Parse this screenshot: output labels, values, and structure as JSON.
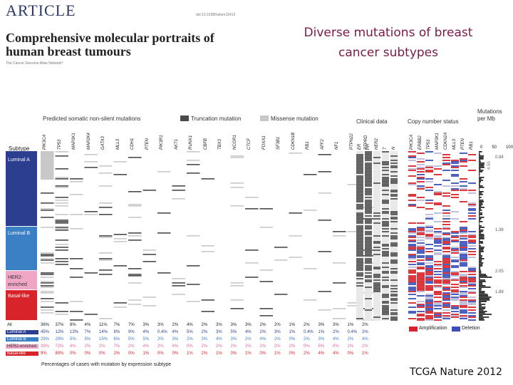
{
  "header": {
    "article_label": "ARTICLE",
    "doi": "doi:10.1038/nature11412",
    "paper_title": "Comprehensive molecular portraits of human breast tumours",
    "authors": "The Cancer Genome Atlas Network*"
  },
  "slide": {
    "title": "Diverse mutations of breast cancer subtypes",
    "credit": "TCGA Nature 2012"
  },
  "figure": {
    "section_mutations": "Predicted somatic non-silent mutations",
    "legend_truncation": "Truncation mutation",
    "legend_missense": "Missense mutation",
    "section_clinical": "Clinical data",
    "section_copy_number": "Copy number status",
    "section_mut_rate": "Mutations per Mb",
    "subtype_header": "Subtype",
    "mut_rate_ticks": [
      "0",
      "50",
      "100"
    ],
    "mut_genes": [
      "PIK3CA",
      "TP53",
      "MAP3K1",
      "MAP2K4",
      "GATA3",
      "MLL3",
      "CDH1",
      "PTEN",
      "PIK3R1",
      "AKT1",
      "RUNX1",
      "CBFB",
      "TBX3",
      "NCOR1",
      "CTCF",
      "FOXA1",
      "SF3B1",
      "CDKN1B",
      "RB1",
      "AFF2",
      "NF1",
      "PTPN22",
      "PTPRD"
    ],
    "clinical_cols": [
      "ER",
      "PR",
      "HER2",
      "T",
      "N"
    ],
    "cn_genes": [
      "PIK3CA",
      "ERBB2",
      "TP53",
      "MAP3K1",
      "CDKN2A",
      "MLL3",
      "PTEN",
      "RB1"
    ],
    "subtypes": [
      {
        "label": "Luminal A",
        "color": "#2b3e8f"
      },
      {
        "label": "Luminal B",
        "color": "#3b7fc4"
      },
      {
        "label": "HER2-enriched",
        "color": "#f0a7c6"
      },
      {
        "label": "Basal-like",
        "color": "#d8232a"
      }
    ],
    "rate_markers": [
      "0.84",
      "1.38",
      "2.05",
      "1.88"
    ],
    "rate_scale_label": "4.55",
    "pct_rows": [
      {
        "label": "All",
        "values": [
          "36%",
          "37%",
          "8%",
          "4%",
          "11%",
          "7%",
          "7%",
          "3%",
          "3%",
          "2%",
          "4%",
          "2%",
          "3%",
          "3%",
          "3%",
          "2%",
          "2%",
          "1%",
          "2%",
          "3%",
          "3%",
          "1%",
          "2%"
        ]
      },
      {
        "label": "Luminal A",
        "values": [
          "45%",
          "12%",
          "13%",
          "7%",
          "14%",
          "8%",
          "9%",
          "4%",
          "0.4%",
          "4%",
          "5%",
          "2%",
          "3%",
          "5%",
          "4%",
          "2%",
          "3%",
          "1%",
          "0.4%",
          "1%",
          "2%",
          "0.4%",
          "2%"
        ]
      },
      {
        "label": "Luminal B",
        "values": [
          "29%",
          "29%",
          "5%",
          "5%",
          "15%",
          "6%",
          "5%",
          "5%",
          "2%",
          "3%",
          "2%",
          "3%",
          "4%",
          "3%",
          "2%",
          "4%",
          "2%",
          "0%",
          "2%",
          "3%",
          "4%",
          "2%",
          "4%"
        ]
      },
      {
        "label": "HER2-enriched",
        "values": [
          "39%",
          "72%",
          "4%",
          "2%",
          "2%",
          "7%",
          "2%",
          "4%",
          "2%",
          "4%",
          "0%",
          "2%",
          "2%",
          "2%",
          "2%",
          "2%",
          "2%",
          "2%",
          "0%",
          "5%",
          "0%",
          "2%",
          "2%"
        ]
      },
      {
        "label": "Basal-like",
        "values": [
          "9%",
          "80%",
          "0%",
          "0%",
          "0%",
          "2%",
          "0%",
          "1%",
          "0%",
          "0%",
          "1%",
          "2%",
          "1%",
          "0%",
          "1%",
          "0%",
          "1%",
          "0%",
          "2%",
          "4%",
          "4%",
          "0%",
          "1%"
        ]
      }
    ],
    "footer_caption": "Percentages of cases with mutation by expression subtype",
    "legend_amplification": "Amplification",
    "legend_deletion": "Deletion"
  },
  "colors": {
    "title_text": "#7a1a4a",
    "truncation": "#4a4a4a",
    "missense": "#c8c8c8",
    "amplification": "#d8232a",
    "deletion": "#3b4fb8"
  }
}
